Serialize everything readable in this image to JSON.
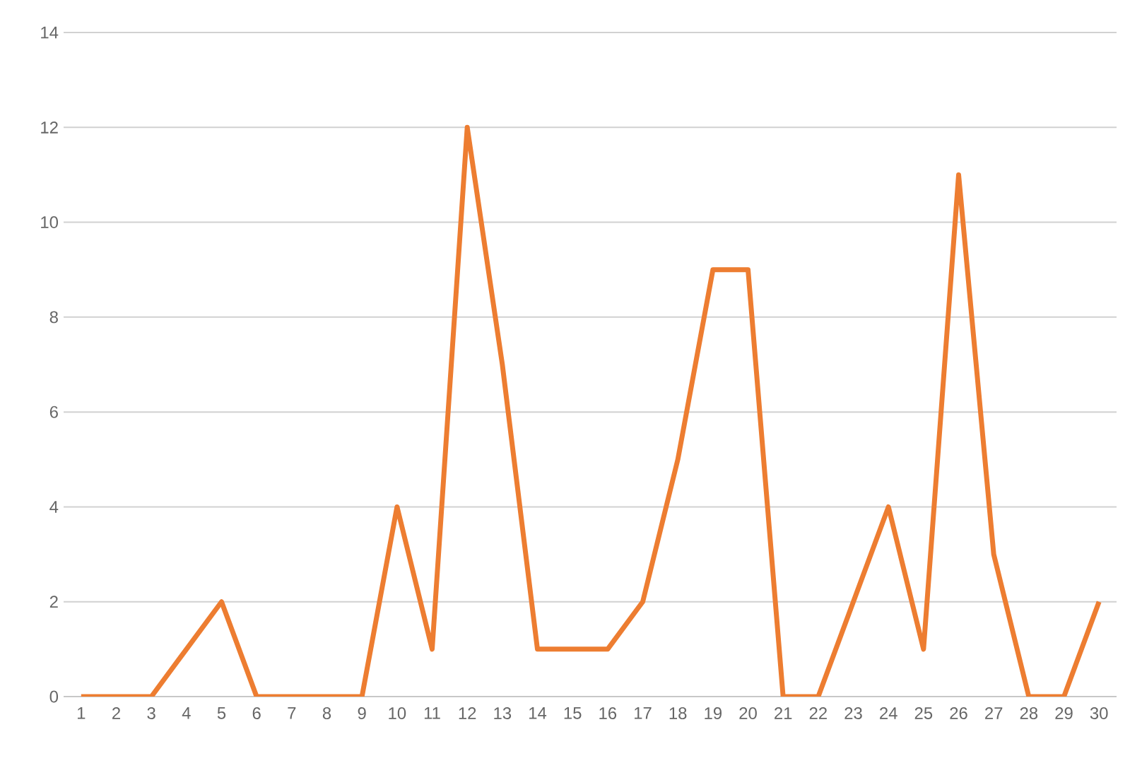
{
  "chart_data": {
    "type": "line",
    "categories": [
      "1",
      "2",
      "3",
      "4",
      "5",
      "6",
      "7",
      "8",
      "9",
      "10",
      "11",
      "12",
      "13",
      "14",
      "15",
      "16",
      "17",
      "18",
      "19",
      "20",
      "21",
      "22",
      "23",
      "24",
      "25",
      "26",
      "27",
      "28",
      "29",
      "30"
    ],
    "series": [
      {
        "color": "#ed7d31",
        "values": [
          0,
          0,
          0,
          1,
          2,
          0,
          0,
          0,
          0,
          4,
          1,
          12,
          7,
          1,
          1,
          1,
          2,
          5,
          9,
          9,
          0,
          0,
          2,
          4,
          1,
          11,
          3,
          0,
          0,
          2
        ]
      }
    ],
    "ylim": [
      0,
      14
    ],
    "yticks": [
      0,
      2,
      4,
      6,
      8,
      10,
      12,
      14
    ],
    "grid": "y",
    "marker": "none",
    "line_style": "solid"
  }
}
